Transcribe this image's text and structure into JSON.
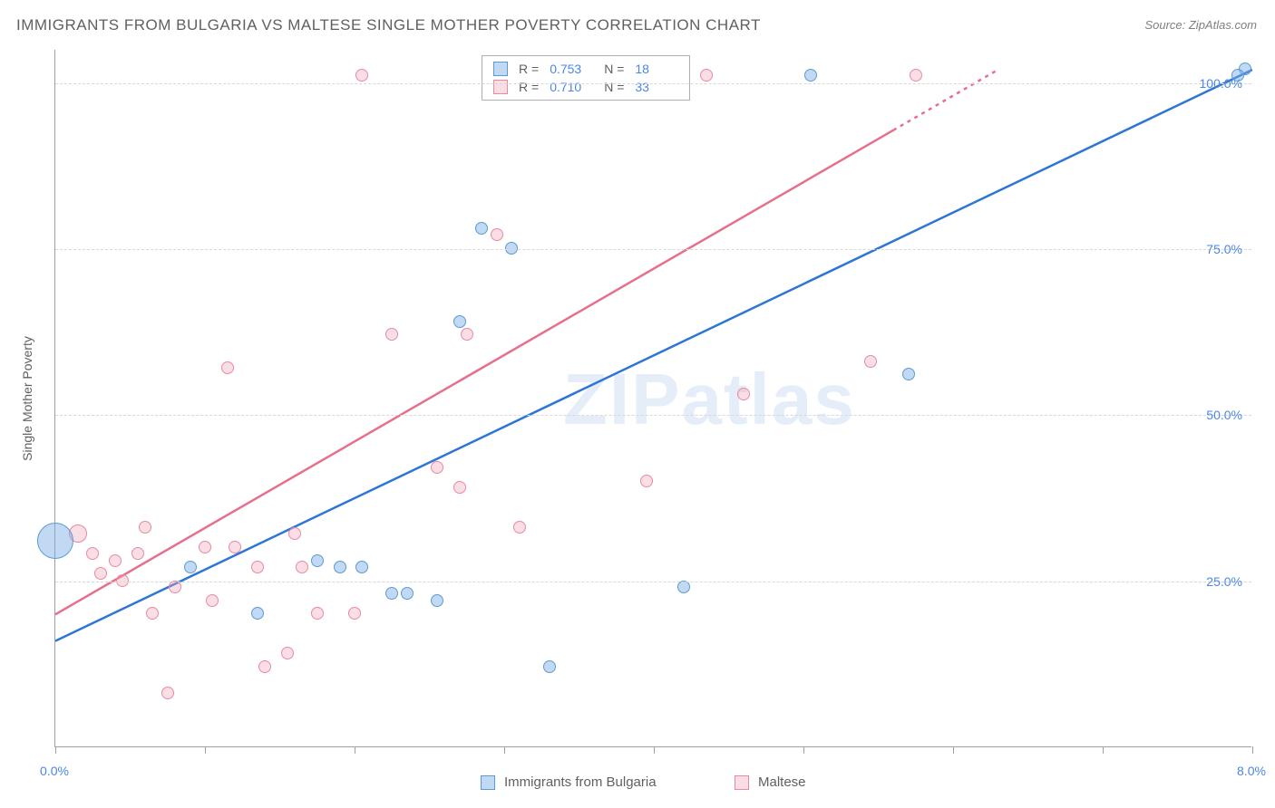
{
  "title": "IMMIGRANTS FROM BULGARIA VS MALTESE SINGLE MOTHER POVERTY CORRELATION CHART",
  "source": "Source: ZipAtlas.com",
  "watermark": "ZIPatlas",
  "ylabel": "Single Mother Poverty",
  "chart": {
    "type": "scatter",
    "xlim": [
      0,
      8
    ],
    "ylim": [
      0,
      105
    ],
    "xtick_positions": [
      0,
      1,
      2,
      3,
      4,
      5,
      6,
      7,
      8
    ],
    "xtick_labels": {
      "0": "0.0%",
      "8": "8.0%"
    },
    "ytick_positions": [
      25,
      50,
      75,
      100
    ],
    "ytick_labels": [
      "25.0%",
      "50.0%",
      "75.0%",
      "100.0%"
    ],
    "grid_color": "#d8d8d8",
    "axis_color": "#a0a0a0",
    "background_color": "#ffffff",
    "label_color": "#4a86e8"
  },
  "series": {
    "blue": {
      "label": "Immigrants from Bulgaria",
      "color_fill": "rgba(120,170,230,0.45)",
      "color_stroke": "#5b9bd5",
      "line_color": "#2e75d6",
      "R": "0.753",
      "N": "18",
      "trend": {
        "x1": 0,
        "y1": 16,
        "x2": 8,
        "y2": 102
      },
      "points": [
        {
          "x": 0.0,
          "y": 31,
          "r": 20
        },
        {
          "x": 0.9,
          "y": 27,
          "r": 7
        },
        {
          "x": 1.35,
          "y": 20,
          "r": 7
        },
        {
          "x": 1.75,
          "y": 28,
          "r": 7
        },
        {
          "x": 1.9,
          "y": 27,
          "r": 7
        },
        {
          "x": 2.05,
          "y": 27,
          "r": 7
        },
        {
          "x": 2.25,
          "y": 23,
          "r": 7
        },
        {
          "x": 2.35,
          "y": 23,
          "r": 7
        },
        {
          "x": 2.55,
          "y": 22,
          "r": 7
        },
        {
          "x": 2.7,
          "y": 64,
          "r": 7
        },
        {
          "x": 2.85,
          "y": 78,
          "r": 7
        },
        {
          "x": 3.05,
          "y": 75,
          "r": 7
        },
        {
          "x": 3.3,
          "y": 12,
          "r": 7
        },
        {
          "x": 4.2,
          "y": 24,
          "r": 7
        },
        {
          "x": 5.05,
          "y": 101,
          "r": 7
        },
        {
          "x": 5.7,
          "y": 56,
          "r": 7
        },
        {
          "x": 7.95,
          "y": 102,
          "r": 7
        },
        {
          "x": 7.9,
          "y": 101,
          "r": 7
        }
      ]
    },
    "pink": {
      "label": "Maltese",
      "color_fill": "rgba(240,160,180,0.35)",
      "color_stroke": "#e88aa0",
      "line_color": "#e76f8c",
      "R": "0.710",
      "N": "33",
      "trend": {
        "x1": 0,
        "y1": 20,
        "x2": 6.3,
        "y2": 102,
        "dash_from": 5.6
      },
      "points": [
        {
          "x": 0.15,
          "y": 32,
          "r": 10
        },
        {
          "x": 0.3,
          "y": 26,
          "r": 7
        },
        {
          "x": 0.25,
          "y": 29,
          "r": 7
        },
        {
          "x": 0.4,
          "y": 28,
          "r": 7
        },
        {
          "x": 0.45,
          "y": 25,
          "r": 7
        },
        {
          "x": 0.55,
          "y": 29,
          "r": 7
        },
        {
          "x": 0.6,
          "y": 33,
          "r": 7
        },
        {
          "x": 0.65,
          "y": 20,
          "r": 7
        },
        {
          "x": 0.75,
          "y": 8,
          "r": 7
        },
        {
          "x": 0.8,
          "y": 24,
          "r": 7
        },
        {
          "x": 1.0,
          "y": 30,
          "r": 7
        },
        {
          "x": 1.05,
          "y": 22,
          "r": 7
        },
        {
          "x": 1.15,
          "y": 57,
          "r": 7
        },
        {
          "x": 1.2,
          "y": 30,
          "r": 7
        },
        {
          "x": 1.35,
          "y": 27,
          "r": 7
        },
        {
          "x": 1.4,
          "y": 12,
          "r": 7
        },
        {
          "x": 1.55,
          "y": 14,
          "r": 7
        },
        {
          "x": 1.6,
          "y": 32,
          "r": 7
        },
        {
          "x": 1.65,
          "y": 27,
          "r": 7
        },
        {
          "x": 1.75,
          "y": 20,
          "r": 7
        },
        {
          "x": 2.0,
          "y": 20,
          "r": 7
        },
        {
          "x": 2.05,
          "y": 101,
          "r": 7
        },
        {
          "x": 2.25,
          "y": 62,
          "r": 7
        },
        {
          "x": 2.55,
          "y": 42,
          "r": 7
        },
        {
          "x": 2.7,
          "y": 39,
          "r": 7
        },
        {
          "x": 2.75,
          "y": 62,
          "r": 7
        },
        {
          "x": 2.95,
          "y": 77,
          "r": 7
        },
        {
          "x": 3.1,
          "y": 33,
          "r": 7
        },
        {
          "x": 3.95,
          "y": 40,
          "r": 7
        },
        {
          "x": 4.35,
          "y": 101,
          "r": 7
        },
        {
          "x": 4.6,
          "y": 53,
          "r": 7
        },
        {
          "x": 5.45,
          "y": 58,
          "r": 7
        },
        {
          "x": 5.75,
          "y": 101,
          "r": 7
        }
      ]
    }
  },
  "legend_top": {
    "R_label": "R =",
    "N_label": "N ="
  }
}
